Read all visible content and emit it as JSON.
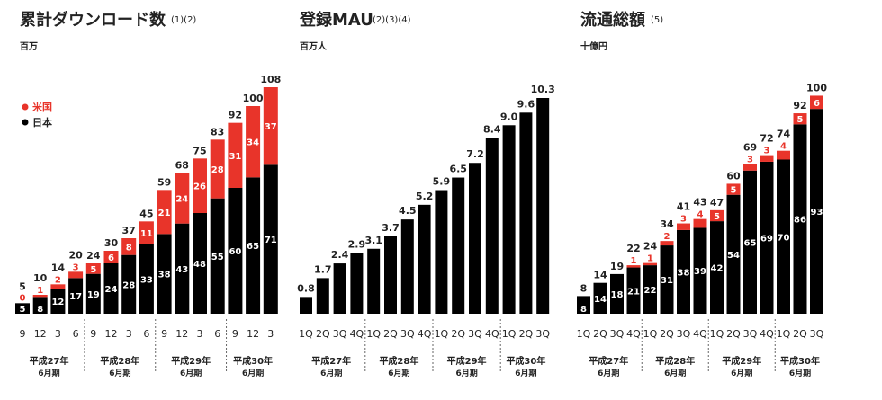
{
  "colors": {
    "us": "#e8342a",
    "japan": "#000000",
    "text": "#222222",
    "axis": "#444444"
  },
  "chart_data": [
    {
      "type": "bar",
      "title": "累計ダウンロード数",
      "title_note": "(1)(2)",
      "unit": "百万",
      "legend": [
        {
          "name": "米国",
          "color": "#e8342a"
        },
        {
          "name": "日本",
          "color": "#000000"
        }
      ],
      "categories": [
        "9",
        "12",
        "3",
        "6",
        "9",
        "12",
        "3",
        "6",
        "9",
        "12",
        "3",
        "6",
        "9",
        "12",
        "3"
      ],
      "series": [
        {
          "name": "日本",
          "values": [
            5,
            8,
            12,
            17,
            19,
            24,
            28,
            33,
            38,
            43,
            48,
            55,
            60,
            65,
            71
          ]
        },
        {
          "name": "米国",
          "values": [
            0,
            1,
            2,
            3,
            5,
            6,
            8,
            11,
            21,
            24,
            26,
            28,
            31,
            34,
            37
          ]
        }
      ],
      "totals": [
        5,
        10,
        14,
        20,
        24,
        30,
        37,
        45,
        59,
        68,
        75,
        83,
        92,
        100,
        108
      ],
      "ylim": [
        0,
        108
      ],
      "groups": [
        {
          "label": "平成27年",
          "sub": "6月期",
          "start": 0,
          "end": 3
        },
        {
          "label": "平成28年",
          "sub": "6月期",
          "start": 4,
          "end": 7
        },
        {
          "label": "平成29年",
          "sub": "6月期",
          "start": 8,
          "end": 11
        },
        {
          "label": "平成30年",
          "sub": "6月期",
          "start": 12,
          "end": 14
        }
      ]
    },
    {
      "type": "bar",
      "title": "登録MAU",
      "title_note": "(2)(3)(4)",
      "unit": "百万人",
      "categories": [
        "1Q",
        "2Q",
        "3Q",
        "4Q",
        "1Q",
        "2Q",
        "3Q",
        "4Q",
        "1Q",
        "2Q",
        "3Q",
        "4Q",
        "1Q",
        "2Q",
        "3Q"
      ],
      "series": [
        {
          "name": "MAU",
          "values": [
            0.8,
            1.7,
            2.4,
            2.9,
            3.1,
            3.7,
            4.5,
            5.2,
            5.9,
            6.5,
            7.2,
            8.4,
            9.0,
            9.6,
            10.3
          ]
        }
      ],
      "labels": [
        "0.8",
        "1.7",
        "2.4",
        "2.9",
        "3.1",
        "3.7",
        "4.5",
        "5.2",
        "5.9",
        "6.5",
        "7.2",
        "8.4",
        "9.0",
        "9.6",
        "10.3"
      ],
      "ylim": [
        0,
        10.3
      ],
      "groups": [
        {
          "label": "平成27年",
          "sub": "6月期",
          "start": 0,
          "end": 3
        },
        {
          "label": "平成28年",
          "sub": "6月期",
          "start": 4,
          "end": 7
        },
        {
          "label": "平成29年",
          "sub": "6月期",
          "start": 8,
          "end": 11
        },
        {
          "label": "平成30年",
          "sub": "6月期",
          "start": 12,
          "end": 14
        }
      ]
    },
    {
      "type": "bar",
      "title": "流通総額",
      "title_note": "(5)",
      "unit": "十億円",
      "categories": [
        "1Q",
        "2Q",
        "3Q",
        "4Q",
        "1Q",
        "2Q",
        "3Q",
        "4Q",
        "1Q",
        "2Q",
        "3Q",
        "4Q",
        "1Q",
        "2Q",
        "3Q"
      ],
      "series": [
        {
          "name": "日本",
          "values": [
            8,
            14,
            18,
            21,
            22,
            31,
            38,
            39,
            42,
            54,
            65,
            69,
            70,
            86,
            93
          ]
        },
        {
          "name": "米国",
          "values": [
            0,
            0,
            0,
            1,
            1,
            2,
            3,
            4,
            5,
            5,
            3,
            3,
            4,
            5,
            6
          ]
        }
      ],
      "totals": [
        8,
        14,
        19,
        22,
        24,
        34,
        41,
        43,
        47,
        60,
        69,
        72,
        74,
        92,
        100
      ],
      "ylim": [
        0,
        100
      ],
      "groups": [
        {
          "label": "平成27年",
          "sub": "6月期",
          "start": 0,
          "end": 3
        },
        {
          "label": "平成28年",
          "sub": "6月期",
          "start": 4,
          "end": 7
        },
        {
          "label": "平成29年",
          "sub": "6月期",
          "start": 8,
          "end": 11
        },
        {
          "label": "平成30年",
          "sub": "6月期",
          "start": 12,
          "end": 14
        }
      ]
    }
  ]
}
